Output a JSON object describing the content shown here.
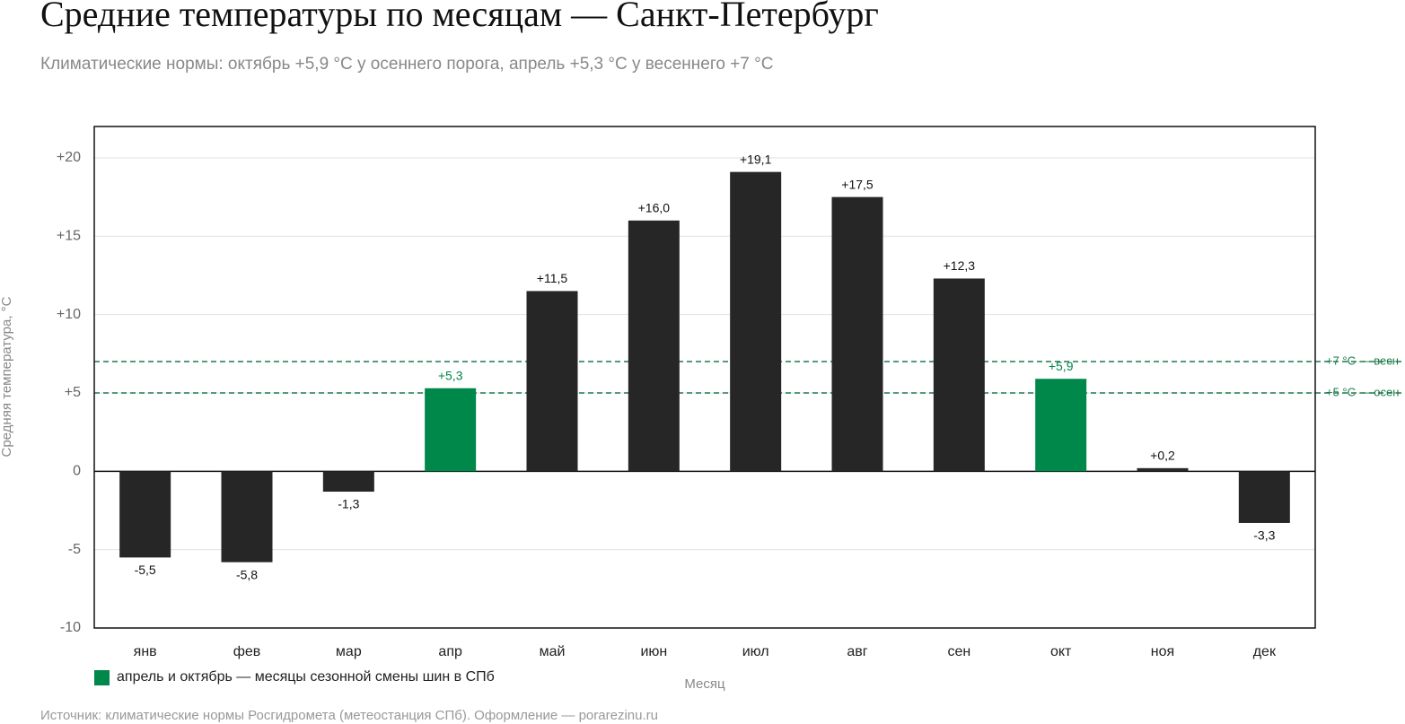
{
  "chart_data": {
    "type": "bar",
    "title": "Средние температуры по месяцам — Санкт-Петербург",
    "subtitle": "Климатические нормы: октябрь +5,9 °C у осеннего порога, апрель +5,3 °C у весеннего +7 °C",
    "x_label": "Месяц",
    "y_label": "Средняя температура, °C",
    "source": "Источник: климатические нормы Росгидромета (метеостанция СПб). Оформление — porarezinu.ru",
    "categories": [
      "янв",
      "фев",
      "мар",
      "апр",
      "май",
      "июн",
      "июл",
      "авг",
      "сен",
      "окт",
      "ноя",
      "дек"
    ],
    "values": [
      -5.5,
      -5.8,
      -1.3,
      5.3,
      11.5,
      16.0,
      19.1,
      17.5,
      12.3,
      5.9,
      0.2,
      -3.3
    ],
    "value_labels": [
      "-5,5",
      "-5,8",
      "-1,3",
      "+5,3",
      "+11,5",
      "+16,0",
      "+19,1",
      "+17,5",
      "+12,3",
      "+5,9",
      "+0,2",
      "-3,3"
    ],
    "colors": [
      "#262626",
      "#262626",
      "#262626",
      "#00874a",
      "#262626",
      "#262626",
      "#262626",
      "#262626",
      "#262626",
      "#00874a",
      "#262626",
      "#262626"
    ],
    "ylim": [
      -10,
      22
    ],
    "yticks": [
      -10,
      -5,
      0,
      {
        "value": 5,
        "label": "+5"
      },
      {
        "value": 10,
        "label": "+10"
      },
      {
        "value": 15,
        "label": "+15"
      },
      {
        "value": 20,
        "label": "+20"
      }
    ],
    "grid": true,
    "reference_lines": [
      {
        "value": 7,
        "label": "+7 °C — весн",
        "color": "#1e7a4c"
      },
      {
        "value": 5,
        "label": "+5 °C — осен",
        "color": "#1e7a4c"
      }
    ],
    "legend": {
      "label": "апрель и октябрь — месяцы сезонной смены шин в СПб",
      "color": "#00874a"
    }
  }
}
